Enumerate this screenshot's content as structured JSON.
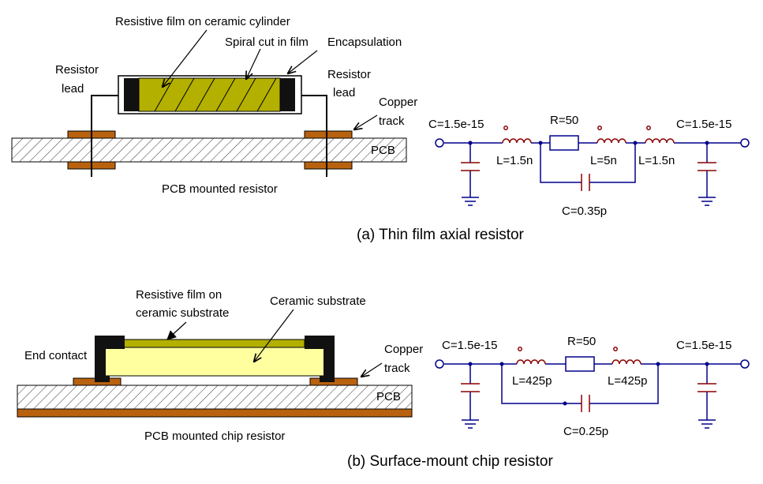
{
  "panel_a": {
    "caption": "(a) Thin film axial resistor",
    "drawing": {
      "film_label": "Resistive film on ceramic cylinder",
      "spiral_label": "Spiral cut in film",
      "encapsulation_label": "Encapsulation",
      "lead_left_line1": "Resistor",
      "lead_left_line2": "lead",
      "lead_right_line1": "Resistor",
      "lead_right_line2": "lead",
      "copper_line1": "Copper",
      "copper_line2": "track",
      "pcb_label": "PCB",
      "title": "PCB mounted resistor"
    },
    "circuit": {
      "c_left": "C=1.5e-15",
      "c_right": "C=1.5e-15",
      "r": "R=50",
      "l_left": "L=1.5n",
      "l_mid": "L=5n",
      "l_right": "L=1.5n",
      "c_par": "C=0.35p"
    }
  },
  "panel_b": {
    "caption": "(b) Surface-mount chip resistor",
    "drawing": {
      "film_line1": "Resistive  film  on",
      "film_line2": "ceramic substrate",
      "ceramic_label": "Ceramic substrate",
      "end_contact_label": "End contact",
      "copper_line1": "Copper",
      "copper_line2": "track",
      "pcb_label": "PCB",
      "title": "PCB mounted chip resistor"
    },
    "circuit": {
      "c_left": "C=1.5e-15",
      "c_right": "C=1.5e-15",
      "r": "R=50",
      "l_left": "L=425p",
      "l_right": "L=425p",
      "c_par": "C=0.25p"
    }
  },
  "colors": {
    "copper": "#b8620f",
    "film": "#b3b000",
    "ceramic": "#ffffa0",
    "wire": "#00008b",
    "component": "#8b0000"
  }
}
